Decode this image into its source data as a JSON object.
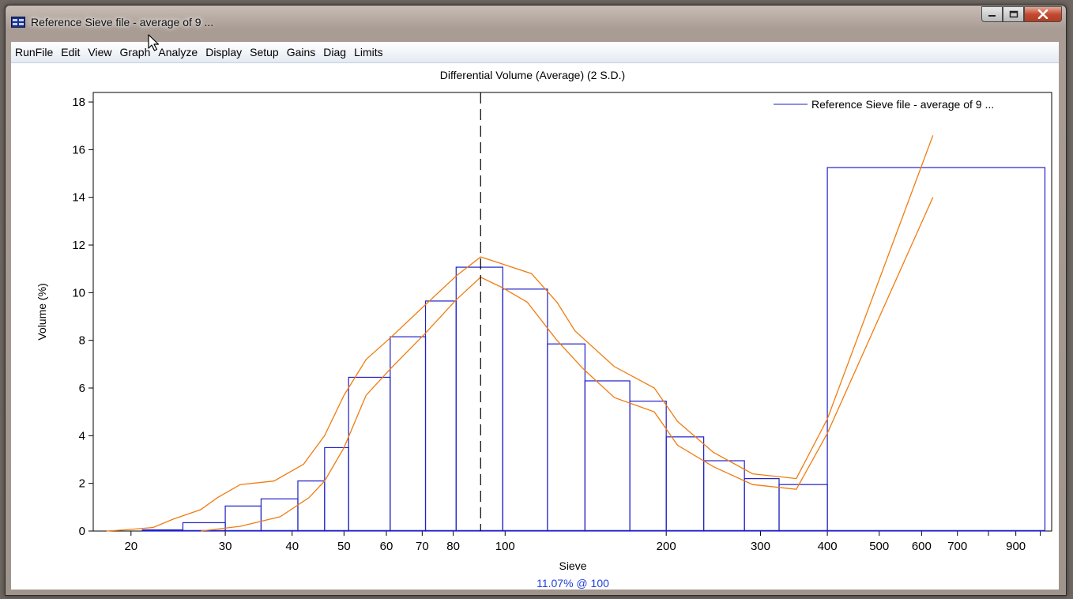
{
  "window": {
    "title": "Reference Sieve file - average of 9 ...",
    "caption": {
      "minimize": "minimize",
      "maximize": "maximize",
      "close": "close"
    }
  },
  "menu": [
    "RunFile",
    "Edit",
    "View",
    "Graph",
    "Analyze",
    "Display",
    "Setup",
    "Gains",
    "Diag",
    "Limits"
  ],
  "colors": {
    "series": "#2020c8",
    "bounds": "#f07c10",
    "marker": "#000000",
    "readout": "#1f3fd8"
  },
  "chart_data": {
    "type": "bar",
    "title": "Differential Volume (Average) (2 S.D.)",
    "xlabel": "Sieve",
    "ylabel": "Volume (%)",
    "x_scale": "log",
    "xlim": [
      17,
      1050
    ],
    "ylim": [
      0,
      18.4
    ],
    "yticks": [
      0,
      2,
      4,
      6,
      8,
      10,
      12,
      14,
      16,
      18
    ],
    "xtick_labels": [
      {
        "value": 20,
        "label": "20"
      },
      {
        "value": 30,
        "label": "30"
      },
      {
        "value": 40,
        "label": "40"
      },
      {
        "value": 50,
        "label": "50"
      },
      {
        "value": 60,
        "label": "60"
      },
      {
        "value": 70,
        "label": "70"
      },
      {
        "value": 80,
        "label": "80"
      },
      {
        "value": 100,
        "label": "100"
      },
      {
        "value": 200,
        "label": "200"
      },
      {
        "value": 300,
        "label": "300"
      },
      {
        "value": 400,
        "label": "400"
      },
      {
        "value": 500,
        "label": "500"
      },
      {
        "value": 600,
        "label": "600"
      },
      {
        "value": 700,
        "label": "700"
      },
      {
        "value": 900,
        "label": "900"
      }
    ],
    "x_minor_ticks": [
      800,
      1000
    ],
    "legend": {
      "entry": "Reference Sieve file - average of 9 ...",
      "position": "top-right"
    },
    "series": [
      {
        "name": "Reference Sieve file - average of 9 ...",
        "bins": [
          {
            "lo": 21,
            "hi": 25,
            "value": 0.05
          },
          {
            "lo": 25,
            "hi": 30,
            "value": 0.35
          },
          {
            "lo": 30,
            "hi": 35,
            "value": 1.05
          },
          {
            "lo": 35,
            "hi": 41,
            "value": 1.35
          },
          {
            "lo": 41,
            "hi": 46,
            "value": 2.1
          },
          {
            "lo": 46,
            "hi": 51,
            "value": 3.5
          },
          {
            "lo": 51,
            "hi": 61,
            "value": 6.45
          },
          {
            "lo": 61,
            "hi": 71,
            "value": 8.15
          },
          {
            "lo": 71,
            "hi": 81,
            "value": 9.65
          },
          {
            "lo": 81,
            "hi": 99,
            "value": 11.07
          },
          {
            "lo": 99,
            "hi": 120,
            "value": 10.15
          },
          {
            "lo": 120,
            "hi": 141,
            "value": 7.85
          },
          {
            "lo": 141,
            "hi": 171,
            "value": 6.3
          },
          {
            "lo": 171,
            "hi": 200,
            "value": 5.45
          },
          {
            "lo": 200,
            "hi": 235,
            "value": 3.95
          },
          {
            "lo": 235,
            "hi": 280,
            "value": 2.95
          },
          {
            "lo": 280,
            "hi": 325,
            "value": 2.2
          },
          {
            "lo": 325,
            "hi": 400,
            "value": 1.95
          },
          {
            "lo": 400,
            "hi": 1020,
            "value": 15.25
          }
        ]
      }
    ],
    "bounds": [
      {
        "kind": "upper",
        "points": [
          [
            18,
            0
          ],
          [
            19.5,
            0.05
          ],
          [
            22,
            0.15
          ],
          [
            24,
            0.5
          ],
          [
            27,
            0.9
          ],
          [
            29,
            1.4
          ],
          [
            32,
            1.95
          ],
          [
            37,
            2.1
          ],
          [
            42,
            2.8
          ],
          [
            46,
            4.0
          ],
          [
            50,
            5.7
          ],
          [
            55,
            7.2
          ],
          [
            61,
            8.1
          ],
          [
            71,
            9.5
          ],
          [
            81,
            10.7
          ],
          [
            90,
            11.5
          ],
          [
            99,
            11.2
          ],
          [
            112,
            10.8
          ],
          [
            125,
            9.6
          ],
          [
            135,
            8.4
          ],
          [
            160,
            6.9
          ],
          [
            190,
            6.0
          ],
          [
            210,
            4.6
          ],
          [
            245,
            3.3
          ],
          [
            290,
            2.4
          ],
          [
            350,
            2.2
          ],
          [
            400,
            4.7
          ],
          [
            630,
            16.6
          ]
        ]
      },
      {
        "kind": "lower",
        "points": [
          [
            27,
            0
          ],
          [
            32,
            0.2
          ],
          [
            38,
            0.6
          ],
          [
            43,
            1.4
          ],
          [
            46,
            2.1
          ],
          [
            50,
            3.5
          ],
          [
            55,
            5.7
          ],
          [
            61,
            6.8
          ],
          [
            71,
            8.3
          ],
          [
            81,
            9.7
          ],
          [
            90,
            10.65
          ],
          [
            99,
            10.2
          ],
          [
            110,
            9.6
          ],
          [
            125,
            8.0
          ],
          [
            140,
            6.8
          ],
          [
            160,
            5.6
          ],
          [
            190,
            5.0
          ],
          [
            210,
            3.6
          ],
          [
            245,
            2.7
          ],
          [
            290,
            1.95
          ],
          [
            350,
            1.75
          ],
          [
            400,
            4.1
          ],
          [
            630,
            14.0
          ]
        ]
      }
    ],
    "marker": {
      "x": 90,
      "style": "dashed"
    },
    "readout": "11.07% @ 100"
  }
}
